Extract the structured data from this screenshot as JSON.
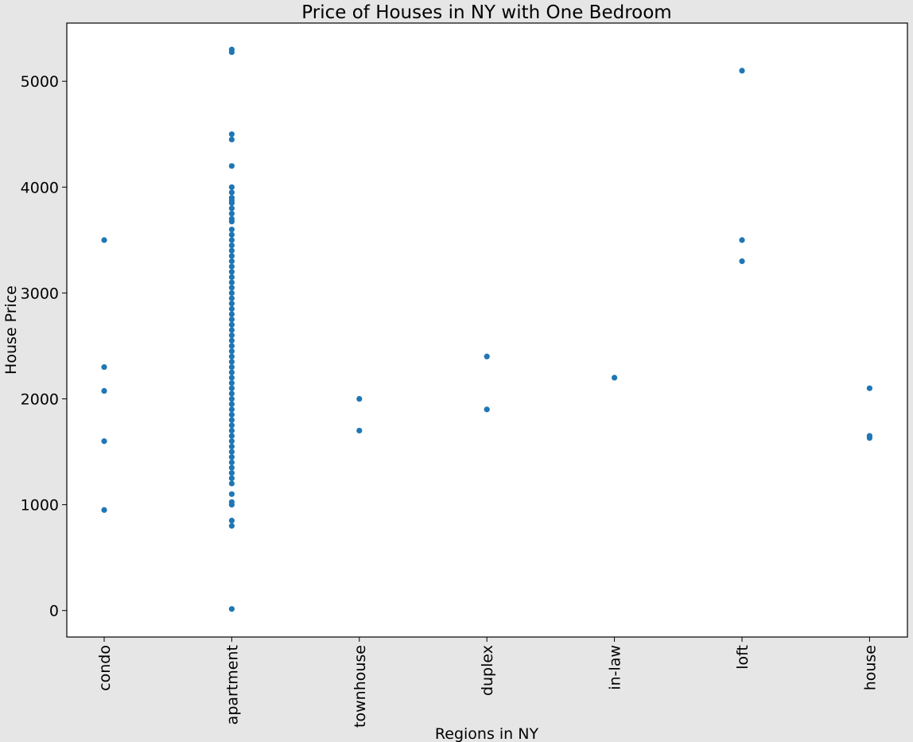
{
  "chart_data": {
    "type": "scatter",
    "title": "Price of Houses in NY with One Bedroom",
    "xlabel": "Regions in NY",
    "ylabel": "House Price",
    "categories": [
      "condo",
      "apartment",
      "townhouse",
      "duplex",
      "in-law",
      "loft",
      "house"
    ],
    "ylim": [
      -250,
      5550
    ],
    "yticks": [
      0,
      1000,
      2000,
      3000,
      4000,
      5000
    ],
    "grid": false,
    "legend": "none",
    "marker_color": "#1f77b4",
    "points": [
      {
        "category": "condo",
        "y": [
          3500,
          2300,
          2075,
          1600,
          950
        ]
      },
      {
        "category": "apartment",
        "y": [
          5300,
          5275,
          4500,
          4450,
          4200,
          4000,
          3950,
          3900,
          3875,
          3850,
          3800,
          3750,
          3700,
          3675,
          3600,
          3550,
          3500,
          3450,
          3400,
          3350,
          3300,
          3250,
          3200,
          3150,
          3100,
          3050,
          3000,
          2950,
          2900,
          2850,
          2800,
          2750,
          2700,
          2650,
          2600,
          2550,
          2500,
          2450,
          2400,
          2350,
          2300,
          2250,
          2200,
          2150,
          2100,
          2050,
          2000,
          1950,
          1900,
          1850,
          1800,
          1750,
          1700,
          1650,
          1600,
          1550,
          1500,
          1450,
          1400,
          1350,
          1300,
          1250,
          1200,
          1100,
          1025,
          1000,
          850,
          800,
          15
        ]
      },
      {
        "category": "townhouse",
        "y": [
          2000,
          1700
        ]
      },
      {
        "category": "duplex",
        "y": [
          2400,
          1900
        ]
      },
      {
        "category": "in-law",
        "y": [
          2200
        ]
      },
      {
        "category": "loft",
        "y": [
          5100,
          3500,
          3300
        ]
      },
      {
        "category": "house",
        "y": [
          2100,
          1650,
          1630
        ]
      }
    ]
  }
}
